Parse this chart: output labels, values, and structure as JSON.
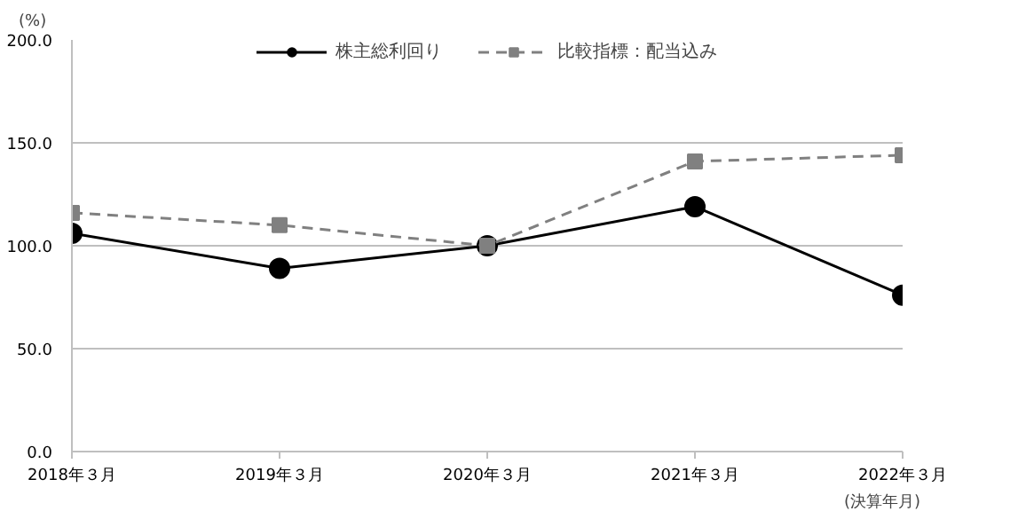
{
  "chart_data": {
    "type": "line",
    "categories": [
      "2018年３月",
      "2019年３月",
      "2020年３月",
      "2021年３月",
      "2022年３月"
    ],
    "xlabel": "(決算年月)",
    "ylabel": "(%)",
    "series": [
      {
        "name": "株主総利回り",
        "color": "#000000",
        "marker": "circle",
        "line_style": "solid",
        "values": [
          106,
          89,
          100,
          119,
          76
        ]
      },
      {
        "name": "比較指標：配当込み",
        "color": "#808080",
        "marker": "square",
        "line_style": "dashed",
        "values": [
          116,
          110,
          100,
          141,
          144
        ]
      }
    ],
    "ylim": [
      0,
      200
    ],
    "yticks": [
      {
        "value": 0,
        "label": "0.0"
      },
      {
        "value": 50,
        "label": "50.0"
      },
      {
        "value": 100,
        "label": "100.0"
      },
      {
        "value": 150,
        "label": "150.0"
      },
      {
        "value": 200,
        "label": "200.0"
      }
    ],
    "grid": "y",
    "legend": "top"
  }
}
